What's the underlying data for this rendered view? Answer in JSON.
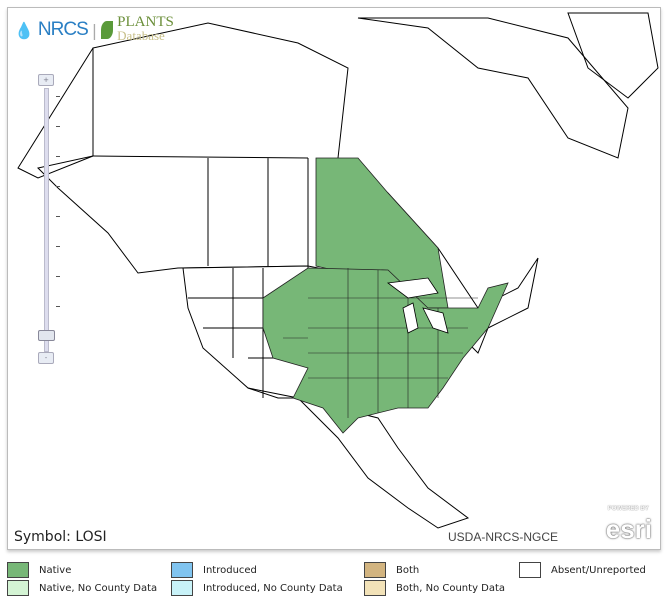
{
  "header": {
    "agency": "NRCS",
    "product": "PLANTS",
    "product_sub": "Database"
  },
  "map": {
    "symbol_label": "Symbol: LOSI",
    "credit": "USDA-NRCS-NGCE",
    "esri": {
      "powered_by": "POWERED BY",
      "brand": "esri"
    },
    "zoom_in": "+",
    "zoom_out": "-"
  },
  "legend": [
    {
      "label": "Native",
      "color": "#77b777"
    },
    {
      "label": "Native, No County Data",
      "color": "#d4f4d4"
    },
    {
      "label": "Introduced",
      "color": "#80c4f0"
    },
    {
      "label": "Introduced, No County Data",
      "color": "#c8f2f8"
    },
    {
      "label": "Both",
      "color": "#d2b480"
    },
    {
      "label": "Both, No County Data",
      "color": "#f2e2b8"
    },
    {
      "label": "Absent/Unreported",
      "color": "#ffffff"
    }
  ]
}
